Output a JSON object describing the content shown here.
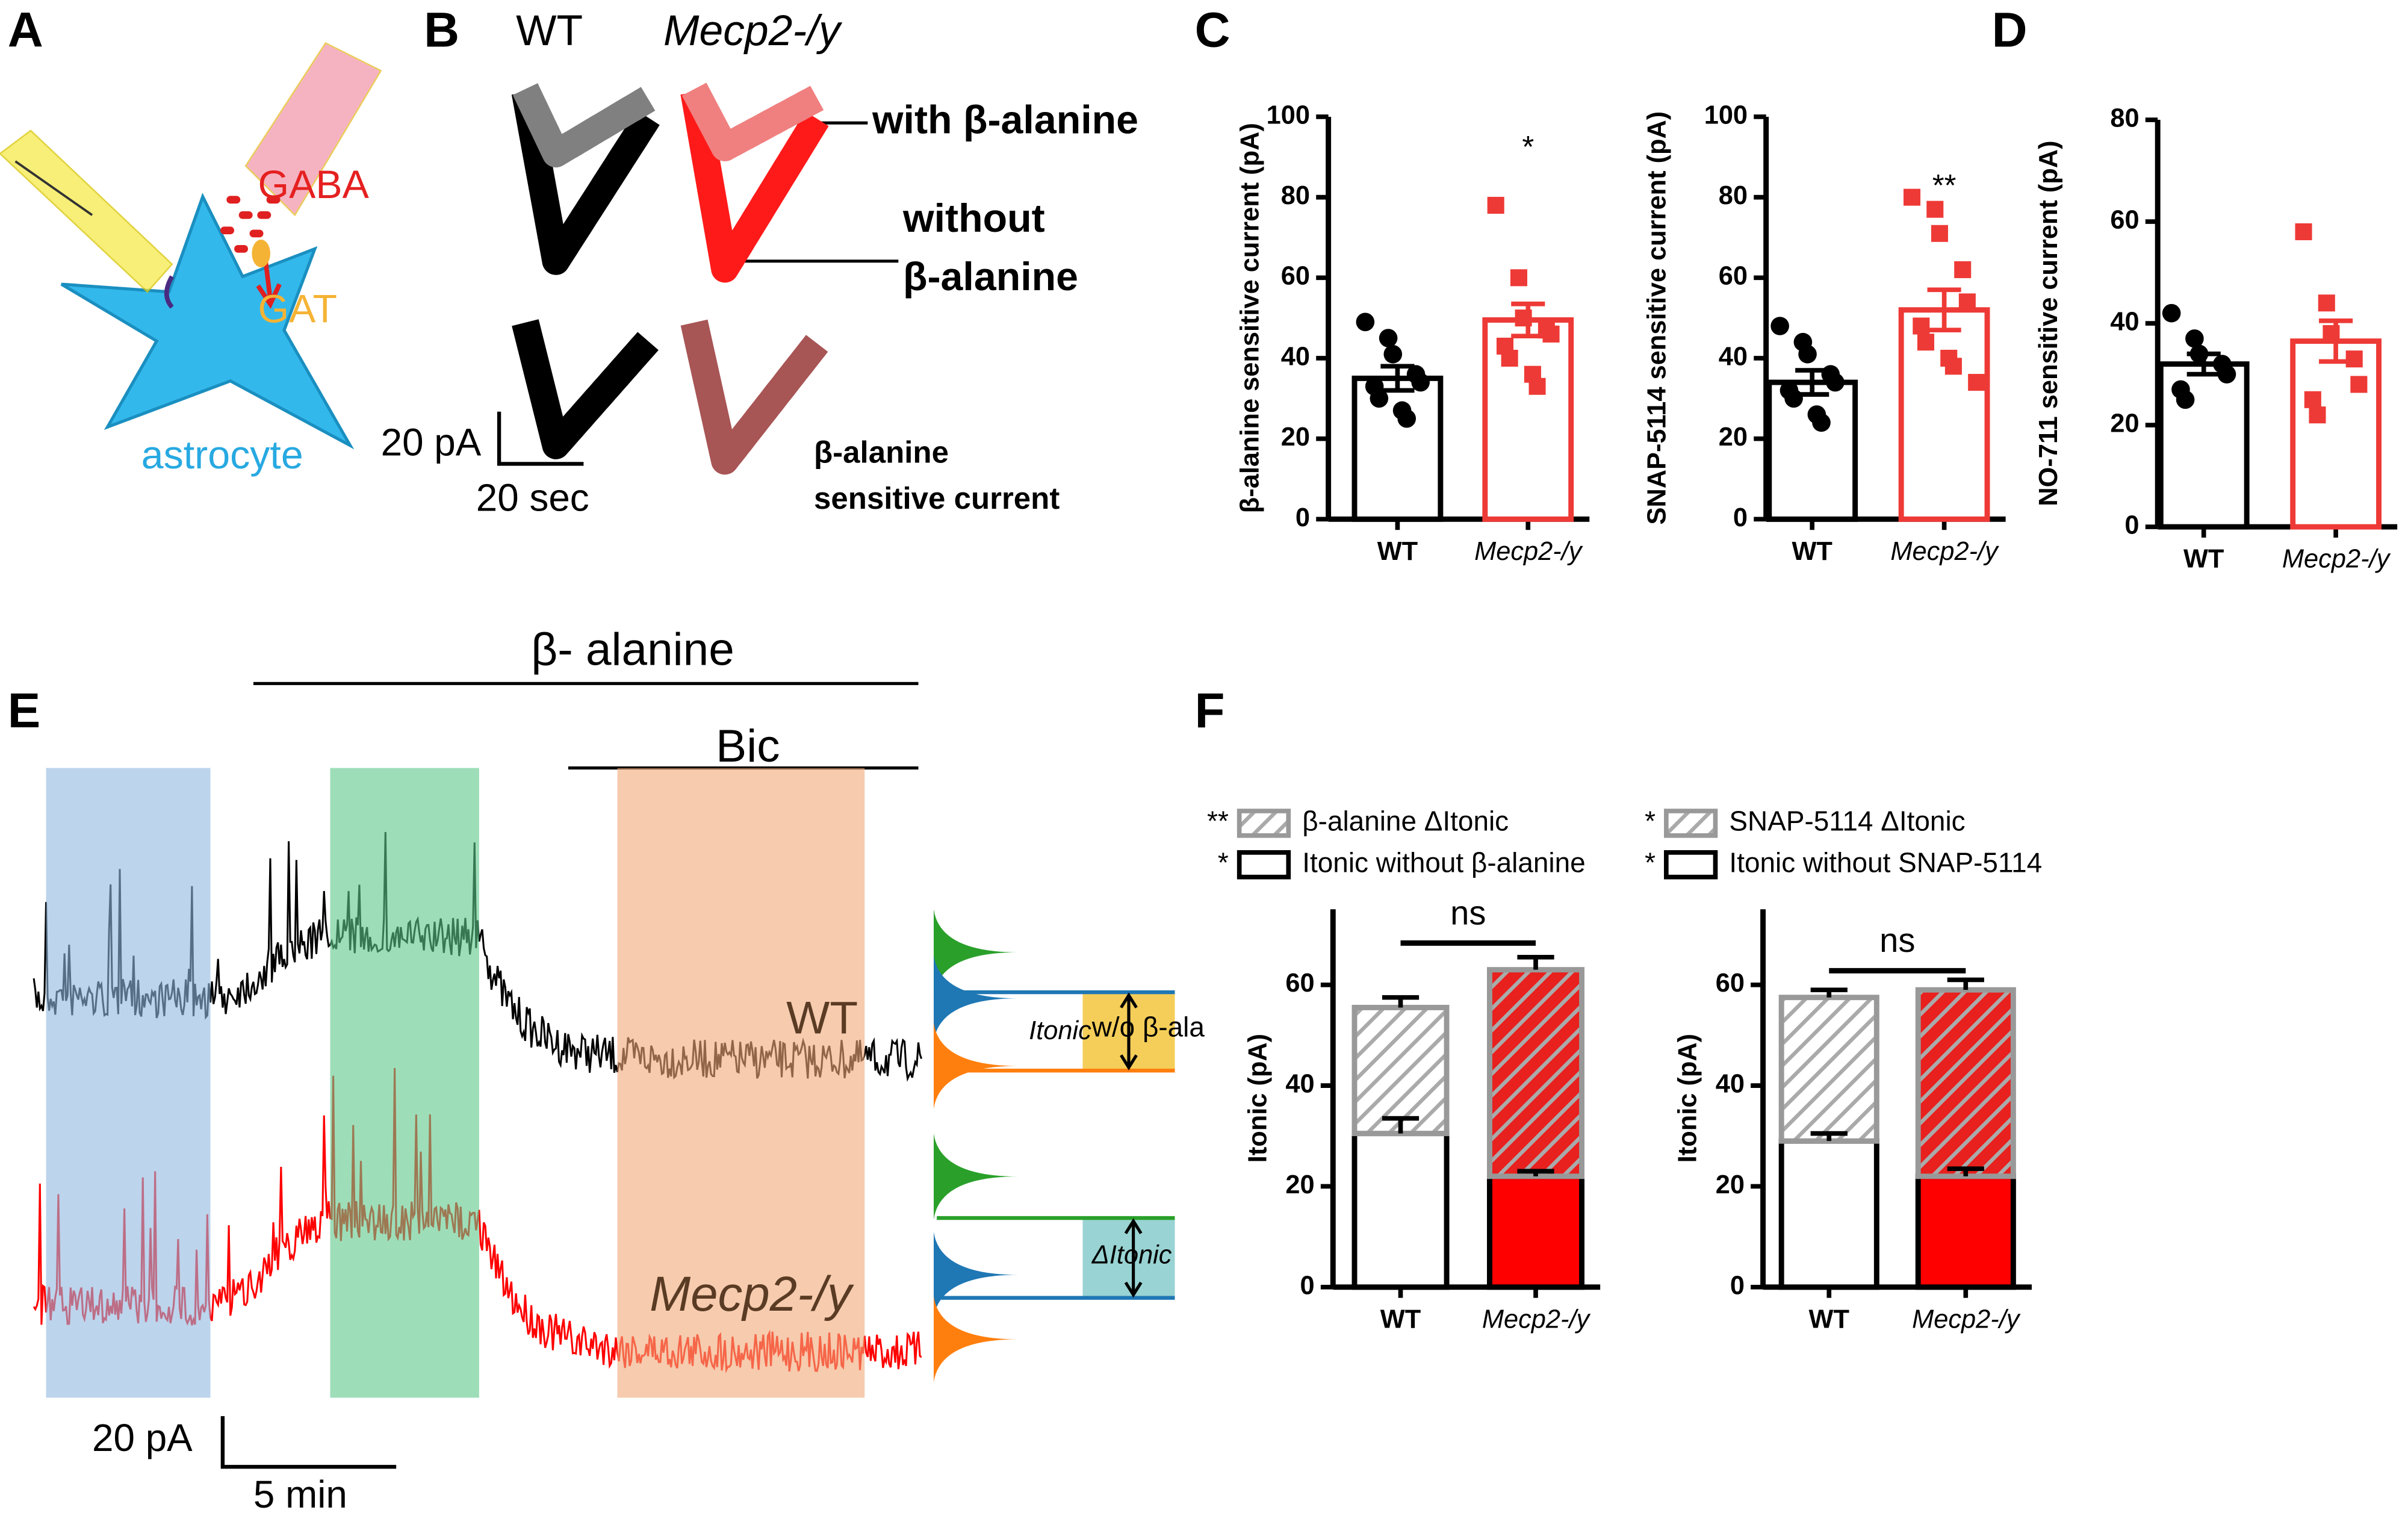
{
  "panel_labels": [
    "A",
    "B",
    "C",
    "D",
    "E",
    "F"
  ],
  "panel_a": {
    "gaba": "GABA",
    "gat": "GAT",
    "cell": "astrocyte"
  },
  "panel_b": {
    "wt": "WT",
    "ko": "Mecp2-/y",
    "with": "with β-alanine",
    "without": "without",
    "without_drug": "β-alanine",
    "diff_drug": "β-alanine",
    "diff_current": "sensitive current",
    "scale_y": "20 pA",
    "scale_x": "20 sec"
  },
  "panel_e": {
    "drug": "β- alanine",
    "bic": "Bic",
    "wt": "WT",
    "ko": "Mecp2-/y",
    "itonic": "Itonic",
    "without": "w/o β-ala",
    "delta": "ΔItonic",
    "scale_y": "20 pA",
    "scale_x": "5 min"
  },
  "chart_data": [
    {
      "type": "bar",
      "ylabel": "β-alanine sensitive current (pA)",
      "categories": [
        "WT",
        "Mecp2-/y"
      ],
      "values": [
        35,
        49.5
      ],
      "errors": [
        3,
        4
      ],
      "points": [
        [
          49,
          45,
          41,
          36,
          34,
          33,
          30,
          27,
          25
        ],
        [
          78,
          60,
          50,
          47,
          46,
          43,
          40,
          36,
          33
        ]
      ],
      "colors": [
        "#000000",
        "#ee3a36"
      ],
      "annotation": "*",
      "ylim": [
        0,
        100
      ],
      "yticks": [
        0,
        20,
        40,
        60,
        80,
        100
      ]
    },
    {
      "type": "bar",
      "ylabel": "SNAP-5114 sensitive current (pA)",
      "categories": [
        "WT",
        "Mecp2-/y"
      ],
      "values": [
        34,
        52
      ],
      "errors": [
        3,
        5
      ],
      "points": [
        [
          48,
          44,
          41,
          36,
          34,
          32,
          30,
          26,
          24
        ],
        [
          80,
          77,
          71,
          62,
          54,
          48,
          44,
          40,
          38,
          34
        ]
      ],
      "colors": [
        "#000000",
        "#ee3a36"
      ],
      "annotation": "**",
      "ylim": [
        0,
        100
      ],
      "yticks": [
        0,
        20,
        40,
        60,
        80,
        100
      ]
    },
    {
      "type": "bar",
      "ylabel": "NO-711 sensitive current (pA)",
      "categories": [
        "WT",
        "Mecp2-/y"
      ],
      "values": [
        32,
        36.5
      ],
      "errors": [
        2,
        4
      ],
      "points": [
        [
          42,
          37,
          34,
          32,
          30,
          27,
          25
        ],
        [
          58,
          44,
          38,
          33,
          28,
          25,
          22
        ]
      ],
      "colors": [
        "#000000",
        "#ee3a36"
      ],
      "ylim": [
        0,
        80
      ],
      "yticks": [
        0,
        20,
        40,
        60,
        80
      ]
    },
    {
      "type": "stacked_bar",
      "ylabel": "Itonic (pA)",
      "categories": [
        "WT",
        "Mecp2-/y"
      ],
      "comparison": "ns",
      "series": [
        {
          "name": "Itonic without β-alanine",
          "significance": "*",
          "values": [
            30.5,
            22
          ],
          "errors": [
            3,
            1
          ],
          "colors": [
            "#ffffff",
            "#ff0000"
          ],
          "border": "#000000"
        },
        {
          "name": "β-alanine ΔItonic",
          "significance": "**",
          "values": [
            25,
            41
          ],
          "errors": [
            2,
            2.5
          ],
          "colors": [
            "#ffffff",
            "#e8201e"
          ],
          "hatch": "#aaaaaa",
          "border": "#999999"
        }
      ],
      "ylim": [
        0,
        75
      ],
      "yticks": [
        0,
        20,
        40,
        60
      ]
    },
    {
      "type": "stacked_bar",
      "ylabel": "Itonic (pA)",
      "categories": [
        "WT",
        "Mecp2-/y"
      ],
      "comparison": "ns",
      "series": [
        {
          "name": "Itonic without SNAP-5114",
          "significance": "*",
          "values": [
            29,
            22
          ],
          "errors": [
            1.5,
            1.5
          ],
          "colors": [
            "#ffffff",
            "#ff0000"
          ],
          "border": "#000000"
        },
        {
          "name": "SNAP-5114 ΔItonic",
          "significance": "*",
          "values": [
            28.5,
            37
          ],
          "errors": [
            1.5,
            2
          ],
          "colors": [
            "#ffffff",
            "#e8201e"
          ],
          "hatch": "#aaaaaa",
          "border": "#999999"
        }
      ],
      "ylim": [
        0,
        75
      ],
      "yticks": [
        0,
        20,
        40,
        60
      ]
    }
  ]
}
